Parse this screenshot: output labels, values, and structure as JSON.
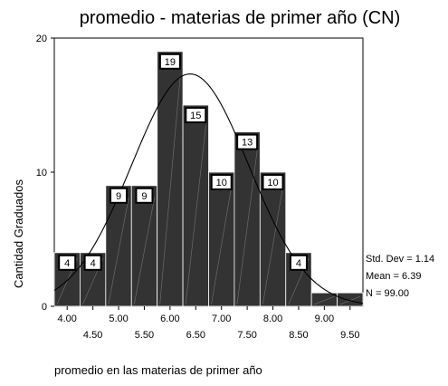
{
  "chart_data": {
    "type": "bar",
    "title": "promedio - materias de primer año (CN)",
    "xlabel": "promedio en las materias de primer año",
    "ylabel": "Cantidad Graduados",
    "bin_start": 3.75,
    "bin_width": 0.5,
    "xlim": [
      3.75,
      9.75
    ],
    "ylim": [
      0,
      20
    ],
    "y_ticks": [
      "0",
      "10",
      "20"
    ],
    "x_ticks_row1": [
      "4.00",
      "5.00",
      "6.00",
      "7.00",
      "8.00",
      "9.00"
    ],
    "x_ticks_row2": [
      "4.50",
      "5.50",
      "6.50",
      "7.50",
      "8.50",
      "9.50"
    ],
    "values": [
      4,
      4,
      9,
      9,
      19,
      15,
      10,
      13,
      10,
      4,
      1,
      1
    ],
    "bar_labels": [
      "4",
      "4",
      "9",
      "9",
      "19",
      "15",
      "10",
      "13",
      "10",
      "4",
      "",
      ""
    ],
    "normal_curve": {
      "mean": 6.39,
      "std": 1.14,
      "n": 99
    },
    "stats": {
      "std_dev": "Std. Dev = 1.14",
      "mean": "Mean = 6.39",
      "n": "N = 99.00"
    },
    "colors": {
      "bar": "#333333",
      "curve": "#000000",
      "label_box": "#ffffff"
    }
  }
}
